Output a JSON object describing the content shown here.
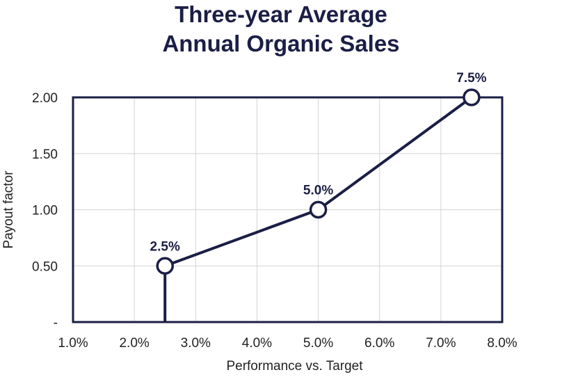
{
  "chart_data": {
    "type": "line",
    "title_lines": [
      "Three-year Average",
      "Annual Organic Sales"
    ],
    "xlabel": "Performance vs. Target",
    "ylabel": "Payout factor",
    "x_ticks": [
      "1.0%",
      "2.0%",
      "3.0%",
      "4.0%",
      "5.0%",
      "6.0%",
      "7.0%",
      "8.0%"
    ],
    "y_ticks": [
      "-",
      "0.50",
      "1.00",
      "1.50",
      "2.00"
    ],
    "xlim": [
      1.0,
      8.0
    ],
    "ylim": [
      0,
      2.0
    ],
    "grid": true,
    "series": [
      {
        "x": [
          2.5,
          2.5,
          5.0,
          7.5
        ],
        "y": [
          0,
          0.5,
          1.0,
          2.0
        ],
        "point_labels": [
          "",
          "2.5%",
          "5.0%",
          "7.5%"
        ],
        "markers": [
          false,
          true,
          true,
          true
        ]
      }
    ],
    "line_color": "#1b1e45",
    "grid_color": "#d4d4d4"
  }
}
